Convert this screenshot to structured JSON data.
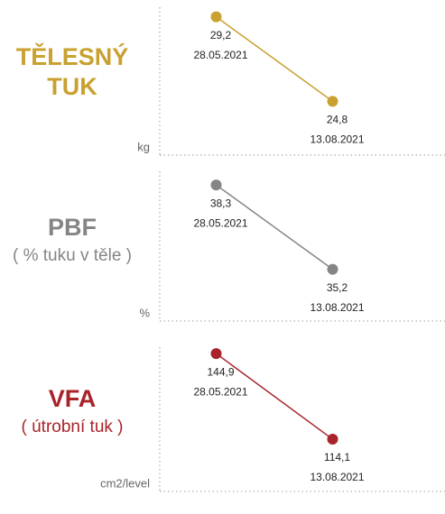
{
  "chart_data": [
    {
      "type": "line",
      "title": "TĚLESNÝ TUK",
      "y_label": "kg",
      "x": [
        "28.05.2021",
        "13.08.2021"
      ],
      "series": [
        {
          "color": "#c9a130",
          "values": [
            29.2,
            24.8
          ],
          "value_labels": [
            "29,2",
            "24,8"
          ]
        }
      ],
      "ylim": [
        22,
        29.7
      ]
    },
    {
      "type": "line",
      "title": "PBF",
      "subtitle": "( % tuku v těle )",
      "y_label": "%",
      "x": [
        "28.05.2021",
        "13.08.2021"
      ],
      "series": [
        {
          "color": "#858585",
          "values": [
            38.3,
            35.2
          ],
          "value_labels": [
            "38,3",
            "35,2"
          ]
        }
      ],
      "ylim": [
        33.3,
        38.8
      ]
    },
    {
      "type": "line",
      "title": "VFA",
      "subtitle": "( útrobní tuk )",
      "y_label": "cm2/level",
      "x": [
        "28.05.2021",
        "13.08.2021"
      ],
      "series": [
        {
          "color": "#a8232a",
          "values": [
            144.9,
            114.1
          ],
          "value_labels": [
            "144,9",
            "114,1"
          ]
        }
      ],
      "ylim": [
        95.3,
        147.2
      ]
    }
  ]
}
